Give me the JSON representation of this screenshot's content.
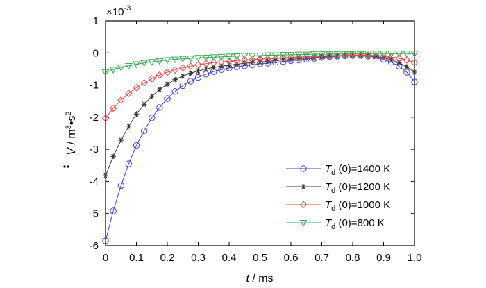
{
  "chart_data": {
    "type": "line",
    "title": "",
    "xlabel": "t / ms",
    "xlabel_parts": {
      "var": "t",
      "unit": " / ms"
    },
    "ylabel": "V̇ / m³·s²",
    "ylabel_parts": {
      "var": "V",
      "unit": " / m",
      "sup1": "3",
      "mid": "•s",
      "sup2": "2"
    },
    "scale_factor_label": {
      "prefix": "×10",
      "exp": "-3"
    },
    "xlim": [
      0,
      1.0
    ],
    "ylim": [
      -6,
      1
    ],
    "xticks": [
      0,
      0.1,
      0.2,
      0.3,
      0.4,
      0.5,
      0.6,
      0.7,
      0.8,
      0.9,
      1.0
    ],
    "xtick_labels": [
      "0",
      "0.1",
      "0.2",
      "0.3",
      "0.4",
      "0.5",
      "0.6",
      "0.7",
      "0.8",
      "0.9",
      "1.0"
    ],
    "yticks": [
      1,
      0,
      -1,
      -2,
      -3,
      -4,
      -5,
      -6
    ],
    "ytick_labels": [
      "1",
      "0",
      "-1",
      "-2",
      "-3",
      "-4",
      "-5",
      "-6"
    ],
    "grid": false,
    "legend_position": "bottom-right",
    "x": [
      0,
      0.025,
      0.05,
      0.075,
      0.1,
      0.125,
      0.15,
      0.175,
      0.2,
      0.225,
      0.25,
      0.275,
      0.3,
      0.325,
      0.35,
      0.375,
      0.4,
      0.425,
      0.45,
      0.475,
      0.5,
      0.525,
      0.55,
      0.575,
      0.6,
      0.625,
      0.65,
      0.675,
      0.7,
      0.725,
      0.75,
      0.775,
      0.8,
      0.825,
      0.85,
      0.875,
      0.9,
      0.925,
      0.95,
      0.975,
      1.0
    ],
    "series": [
      {
        "name": "Td (0)=1400 K",
        "name_parts": {
          "T": "T",
          "sub": "d",
          "rest": " (0)=1400 K"
        },
        "color": "#3b3bdb",
        "marker": "circle",
        "values": [
          -5.85,
          -4.92,
          -4.13,
          -3.45,
          -2.88,
          -2.42,
          -2.02,
          -1.7,
          -1.42,
          -1.2,
          -1.02,
          -0.88,
          -0.76,
          -0.66,
          -0.58,
          -0.52,
          -0.47,
          -0.43,
          -0.4,
          -0.37,
          -0.34,
          -0.32,
          -0.29,
          -0.27,
          -0.24,
          -0.22,
          -0.19,
          -0.17,
          -0.14,
          -0.12,
          -0.1,
          -0.09,
          -0.08,
          -0.08,
          -0.1,
          -0.14,
          -0.2,
          -0.29,
          -0.41,
          -0.6,
          -0.9
        ]
      },
      {
        "name": "Td (0)=1200 K",
        "name_parts": {
          "T": "T",
          "sub": "d",
          "rest": " (0)=1200 K"
        },
        "color": "#333333",
        "marker": "star",
        "values": [
          -3.82,
          -3.22,
          -2.72,
          -2.28,
          -1.9,
          -1.6,
          -1.35,
          -1.14,
          -0.97,
          -0.83,
          -0.72,
          -0.63,
          -0.56,
          -0.5,
          -0.45,
          -0.41,
          -0.38,
          -0.35,
          -0.32,
          -0.3,
          -0.28,
          -0.26,
          -0.24,
          -0.22,
          -0.2,
          -0.18,
          -0.16,
          -0.14,
          -0.12,
          -0.1,
          -0.09,
          -0.08,
          -0.07,
          -0.07,
          -0.08,
          -0.11,
          -0.15,
          -0.21,
          -0.3,
          -0.43,
          -0.6
        ]
      },
      {
        "name": "Td (0)=1000 K",
        "name_parts": {
          "T": "T",
          "sub": "d",
          "rest": " (0)=1000 K"
        },
        "color": "#e84545",
        "marker": "diamond",
        "values": [
          -2.03,
          -1.72,
          -1.47,
          -1.26,
          -1.08,
          -0.93,
          -0.8,
          -0.69,
          -0.6,
          -0.53,
          -0.46,
          -0.41,
          -0.37,
          -0.33,
          -0.3,
          -0.28,
          -0.26,
          -0.24,
          -0.22,
          -0.21,
          -0.19,
          -0.18,
          -0.17,
          -0.15,
          -0.14,
          -0.13,
          -0.12,
          -0.11,
          -0.1,
          -0.09,
          -0.08,
          -0.07,
          -0.07,
          -0.07,
          -0.07,
          -0.08,
          -0.1,
          -0.13,
          -0.17,
          -0.22,
          -0.3
        ]
      },
      {
        "name": "Td (0)=800 K",
        "name_parts": {
          "T": "T",
          "sub": "d",
          "rest": " (0)=800 K"
        },
        "color": "#2ea84a",
        "marker": "triangle-down",
        "values": [
          -0.6,
          -0.52,
          -0.45,
          -0.4,
          -0.35,
          -0.31,
          -0.28,
          -0.25,
          -0.22,
          -0.2,
          -0.18,
          -0.17,
          -0.15,
          -0.14,
          -0.13,
          -0.12,
          -0.11,
          -0.1,
          -0.09,
          -0.09,
          -0.08,
          -0.07,
          -0.07,
          -0.06,
          -0.06,
          -0.05,
          -0.05,
          -0.04,
          -0.04,
          -0.04,
          -0.03,
          -0.03,
          -0.03,
          -0.03,
          -0.02,
          -0.02,
          -0.02,
          -0.02,
          -0.02,
          -0.02,
          -0.02
        ]
      }
    ]
  }
}
